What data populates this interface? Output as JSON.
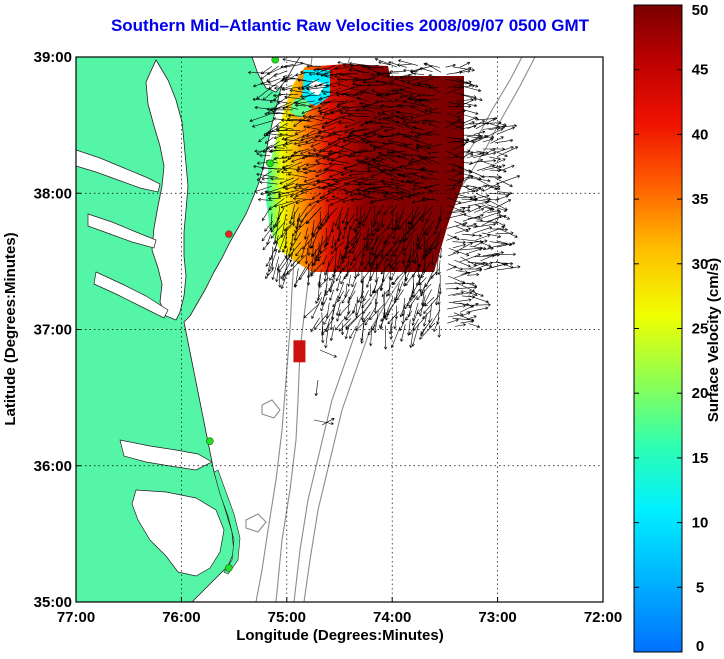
{
  "title": "Southern Mid–Atlantic Raw Velocities 2008/09/07 0500 GMT",
  "x_axis": {
    "label": "Longitude (Degrees:Minutes)",
    "ticks": [
      {
        "value": -77,
        "label": "77:00"
      },
      {
        "value": -76,
        "label": "76:00"
      },
      {
        "value": -75,
        "label": "75:00"
      },
      {
        "value": -74,
        "label": "74:00"
      },
      {
        "value": -73,
        "label": "73:00"
      },
      {
        "value": -72,
        "label": "72:00"
      }
    ],
    "range": [
      -77,
      -72
    ]
  },
  "y_axis": {
    "label": "Latitude (Degrees:Minutes)",
    "ticks": [
      {
        "value": 35,
        "label": "35:00"
      },
      {
        "value": 36,
        "label": "36:00"
      },
      {
        "value": 37,
        "label": "37:00"
      },
      {
        "value": 38,
        "label": "38:00"
      },
      {
        "value": 39,
        "label": "39:00"
      }
    ],
    "range": [
      35,
      39
    ]
  },
  "colorbar": {
    "label": "Surface Velocity (cm/s)",
    "range": [
      0,
      50
    ],
    "ticks": [
      "0",
      "5",
      "10",
      "15",
      "20",
      "25",
      "30",
      "35",
      "40",
      "45",
      "50"
    ]
  },
  "colors": {
    "land": "#55f5a8",
    "water": "#ffffff",
    "contour": "#8c8c8c",
    "coast": "#222222",
    "station": "#22dd22",
    "station_alert": "#ee2222",
    "grid": "#000000"
  },
  "stations": [
    {
      "lon": -75.11,
      "lat": 38.98,
      "status": "ok"
    },
    {
      "lon": -75.16,
      "lat": 38.22,
      "status": "ok"
    },
    {
      "lon": -75.55,
      "lat": 37.7,
      "status": "alert"
    },
    {
      "lon": -75.73,
      "lat": 36.18,
      "status": "ok"
    },
    {
      "lon": -75.55,
      "lat": 35.25,
      "status": "ok"
    }
  ],
  "velocity_field": {
    "grid_on": true,
    "main_region_lon": [
      -75.15,
      -73.35
    ],
    "main_region_lat": [
      37.45,
      38.95
    ],
    "isolated_patch": {
      "lon": -74.88,
      "lat": 36.84,
      "speed": 42
    }
  }
}
